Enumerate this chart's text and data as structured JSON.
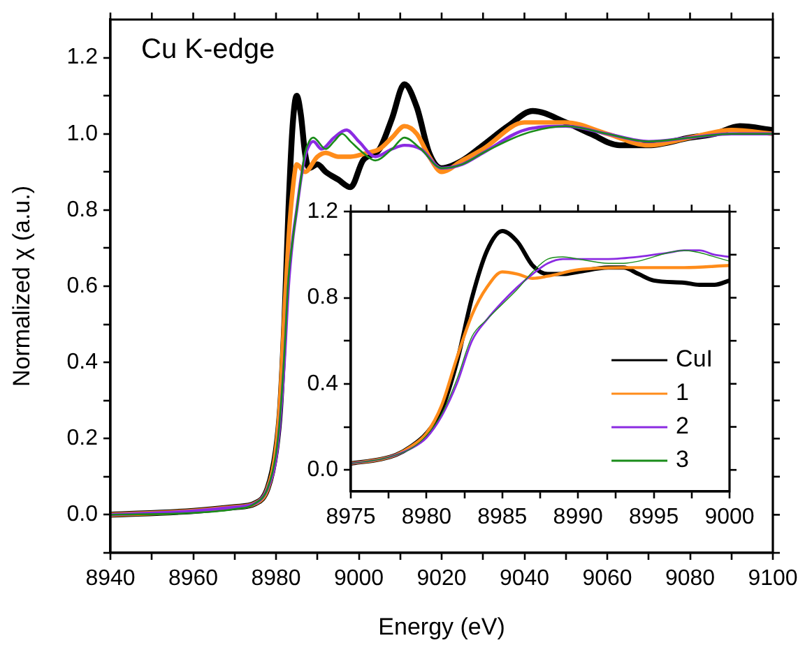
{
  "chart_data": [
    {
      "type": "line",
      "xlabel": "Energy (eV)",
      "ylabel": "Normalized χ (a.u.)",
      "annotations": [
        "Cu K-edge"
      ],
      "xlim": [
        8940,
        9100
      ],
      "ylim": [
        -0.1,
        1.3
      ],
      "xticks": [
        8940,
        {
          "value": 8950,
          "label": null
        },
        8960,
        {
          "value": 8970,
          "label": null
        },
        8980,
        {
          "value": 8990,
          "label": null
        },
        9000,
        {
          "value": 9010,
          "label": null
        },
        9020,
        {
          "value": 9030,
          "label": null
        },
        9040,
        {
          "value": 9050,
          "label": null
        },
        9060,
        {
          "value": 9070,
          "label": null
        },
        9080,
        {
          "value": 9090,
          "label": null
        },
        9100
      ],
      "yticks": [
        {
          "value": -0.1,
          "label": null
        },
        {
          "value": 0,
          "label": "0.0"
        },
        {
          "value": 0.1,
          "label": null
        },
        {
          "value": 0.2,
          "label": "0.2"
        },
        {
          "value": 0.3,
          "label": null
        },
        {
          "value": 0.4,
          "label": "0.4"
        },
        {
          "value": 0.5,
          "label": null
        },
        {
          "value": 0.6,
          "label": "0.6"
        },
        {
          "value": 0.7,
          "label": null
        },
        {
          "value": 0.8,
          "label": "0.8"
        },
        {
          "value": 0.9,
          "label": null
        },
        {
          "value": 1,
          "label": "1.0"
        },
        {
          "value": 1.1,
          "label": null
        },
        {
          "value": 1.2,
          "label": "1.2"
        }
      ],
      "series": [
        {
          "color": "#000000",
          "x": [
            8940,
            8960,
            8970,
            8975,
            8978,
            8980,
            8981,
            8982,
            8983,
            8984,
            8985,
            8986,
            8987,
            8988,
            8990,
            8992,
            8995,
            8998,
            9001,
            9005,
            9008,
            9011,
            9014,
            9017,
            9020,
            9025,
            9030,
            9036,
            9042,
            9050,
            9056,
            9063,
            9070,
            9080,
            9086,
            9092,
            9100
          ],
          "values": [
            0,
            0.01,
            0.02,
            0.03,
            0.07,
            0.17,
            0.28,
            0.5,
            0.8,
            1.02,
            1.1,
            1.05,
            0.95,
            0.91,
            0.92,
            0.9,
            0.88,
            0.86,
            0.93,
            0.96,
            1.04,
            1.13,
            1.07,
            0.95,
            0.91,
            0.93,
            0.97,
            1.02,
            1.06,
            1.03,
            1.0,
            0.97,
            0.97,
            0.99,
            1.0,
            1.02,
            1.01
          ]
        },
        {
          "color": "#ff8c1a",
          "x": [
            8940,
            8960,
            8970,
            8975,
            8978,
            8980,
            8981,
            8982,
            8983,
            8984,
            8985,
            8987,
            8990,
            8992,
            8995,
            8998,
            9002,
            9005,
            9008,
            9011,
            9014,
            9017,
            9020,
            9025,
            9030,
            9040,
            9050,
            9060,
            9070,
            9080,
            9090,
            9100
          ],
          "values": [
            0,
            0.01,
            0.02,
            0.03,
            0.07,
            0.17,
            0.3,
            0.52,
            0.72,
            0.85,
            0.92,
            0.9,
            0.94,
            0.95,
            0.94,
            0.94,
            0.95,
            0.96,
            0.99,
            1.02,
            1.0,
            0.94,
            0.9,
            0.93,
            0.96,
            1.03,
            1.03,
            1.0,
            0.97,
            0.99,
            1.01,
            1.0
          ]
        },
        {
          "color": "#8b2be2",
          "x": [
            8940,
            8960,
            8970,
            8975,
            8978,
            8980,
            8981,
            8982,
            8983,
            8984,
            8985,
            8986,
            8987,
            8988,
            8989,
            8991,
            8994,
            8997,
            9000,
            9004,
            9008,
            9011,
            9015,
            9020,
            9025,
            9030,
            9040,
            9050,
            9060,
            9070,
            9080,
            9090,
            9100
          ],
          "values": [
            0,
            0.01,
            0.02,
            0.03,
            0.07,
            0.15,
            0.25,
            0.4,
            0.6,
            0.72,
            0.8,
            0.88,
            0.94,
            0.97,
            0.98,
            0.96,
            0.99,
            1.01,
            0.98,
            0.94,
            0.96,
            0.97,
            0.96,
            0.91,
            0.92,
            0.95,
            1.01,
            1.02,
            1.0,
            0.98,
            0.99,
            1.0,
            1.0
          ]
        },
        {
          "color": "#1a8c1a",
          "x": [
            8940,
            8960,
            8970,
            8975,
            8978,
            8980,
            8981,
            8982,
            8983,
            8984,
            8985,
            8986,
            8987,
            8988,
            8989,
            8992,
            8994,
            8996,
            8998,
            9001,
            9004,
            9008,
            9011,
            9015,
            9020,
            9025,
            9030,
            9040,
            9050,
            9060,
            9070,
            9080,
            9090,
            9100
          ],
          "values": [
            0,
            0.005,
            0.015,
            0.03,
            0.07,
            0.16,
            0.26,
            0.42,
            0.62,
            0.72,
            0.8,
            0.88,
            0.95,
            0.98,
            0.99,
            0.96,
            0.98,
            1.0,
            0.98,
            0.95,
            0.93,
            0.96,
            0.99,
            0.96,
            0.91,
            0.92,
            0.95,
            1.0,
            1.02,
            1.0,
            0.98,
            0.99,
            1.0,
            1.0
          ]
        }
      ]
    },
    {
      "type": "line",
      "legend": "bottom right",
      "xlim": [
        8975,
        9000
      ],
      "ylim": [
        -0.1,
        1.2
      ],
      "xticks": [
        8975,
        {
          "value": 8977.5,
          "label": null
        },
        8980,
        {
          "value": 8982.5,
          "label": null
        },
        8985,
        {
          "value": 8987.5,
          "label": null
        },
        8990,
        {
          "value": 8992.5,
          "label": null
        },
        8995,
        {
          "value": 8997.5,
          "label": null
        },
        9000
      ],
      "yticks": [
        {
          "value": 0,
          "label": "0.0"
        },
        {
          "value": 0.2,
          "label": null
        },
        {
          "value": 0.4,
          "label": "0.4"
        },
        {
          "value": 0.6,
          "label": null
        },
        {
          "value": 0.8,
          "label": "0.8"
        },
        {
          "value": 1,
          "label": null
        },
        {
          "value": 1.2,
          "label": "1.2"
        }
      ],
      "series": [
        {
          "name": "CuI",
          "color": "#000000",
          "x": [
            8975,
            8977,
            8978,
            8979,
            8980,
            8981,
            8982,
            8983,
            8984,
            8985,
            8986,
            8987,
            8988,
            8989,
            8990,
            8992,
            8993,
            8994,
            8995,
            8997,
            8998,
            8999,
            9000
          ],
          "values": [
            0.03,
            0.05,
            0.07,
            0.11,
            0.17,
            0.28,
            0.5,
            0.8,
            1.02,
            1.11,
            1.06,
            0.95,
            0.91,
            0.91,
            0.92,
            0.94,
            0.94,
            0.91,
            0.88,
            0.87,
            0.86,
            0.86,
            0.88
          ]
        },
        {
          "name": "1",
          "color": "#ff8c1a",
          "x": [
            8975,
            8977,
            8978,
            8979,
            8980,
            8981,
            8982,
            8983,
            8984,
            8985,
            8986,
            8987,
            8988,
            8990,
            8993,
            8995,
            8997,
            9000
          ],
          "values": [
            0.03,
            0.05,
            0.07,
            0.11,
            0.17,
            0.3,
            0.52,
            0.72,
            0.85,
            0.92,
            0.91,
            0.89,
            0.9,
            0.93,
            0.94,
            0.94,
            0.94,
            0.95
          ]
        },
        {
          "name": "2",
          "color": "#8b2be2",
          "x": [
            8975,
            8977,
            8978,
            8979,
            8980,
            8981,
            8982,
            8983,
            8984,
            8985,
            8986,
            8987,
            8988,
            8989,
            8990,
            8992,
            8994,
            8996,
            8997,
            8998,
            8999,
            9000
          ],
          "values": [
            0.03,
            0.05,
            0.07,
            0.1,
            0.15,
            0.25,
            0.4,
            0.6,
            0.7,
            0.78,
            0.85,
            0.91,
            0.96,
            0.98,
            0.98,
            0.98,
            0.99,
            1.01,
            1.02,
            1.02,
            1.0,
            0.99
          ]
        },
        {
          "name": "3",
          "color": "#1a8c1a",
          "x": [
            8975,
            8977,
            8978,
            8979,
            8980,
            8981,
            8982,
            8983,
            8984,
            8985,
            8986,
            8987,
            8988,
            8989,
            8990,
            8992,
            8993,
            8994,
            8996,
            8997,
            8998,
            8999,
            9000
          ],
          "values": [
            0.03,
            0.05,
            0.07,
            0.1,
            0.16,
            0.26,
            0.42,
            0.62,
            0.7,
            0.77,
            0.84,
            0.92,
            0.98,
            0.99,
            0.98,
            0.96,
            0.96,
            0.97,
            1.01,
            1.02,
            1.01,
            0.99,
            0.97
          ]
        }
      ]
    }
  ]
}
